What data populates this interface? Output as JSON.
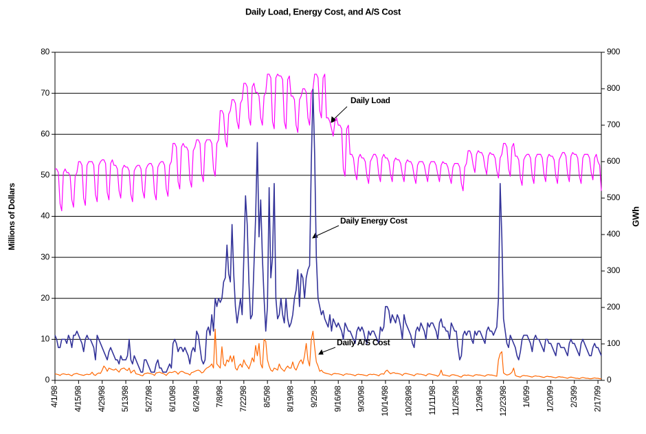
{
  "chart_data": {
    "type": "line",
    "title": "Daily Load, Energy Cost, and A/S Cost",
    "ylabel": "Millions of Dollars",
    "y2label": "GWh",
    "ylim": [
      0,
      80
    ],
    "yticks": [
      0,
      10,
      20,
      30,
      40,
      50,
      60,
      70,
      80
    ],
    "y2lim": [
      0,
      900
    ],
    "y2ticks": [
      0,
      100,
      200,
      300,
      400,
      500,
      600,
      700,
      800,
      900
    ],
    "grid": true,
    "annotations": [
      "Daily Load",
      "Daily Energy Cost",
      "Daily A/S Cost"
    ],
    "categories": [
      "4/1/98",
      null,
      null,
      null,
      null,
      null,
      null,
      null,
      null,
      null,
      null,
      null,
      null,
      null,
      "4/15/98",
      null,
      null,
      null,
      null,
      null,
      null,
      null,
      null,
      null,
      null,
      null,
      null,
      null,
      "4/29/98",
      null,
      null,
      null,
      null,
      null,
      null,
      null,
      null,
      null,
      null,
      null,
      null,
      null,
      "5/13/98",
      null,
      null,
      null,
      null,
      null,
      null,
      null,
      null,
      null,
      null,
      null,
      null,
      null,
      "5/27/98",
      null,
      null,
      null,
      null,
      null,
      null,
      null,
      null,
      null,
      null,
      null,
      null,
      null,
      "6/10/98",
      null,
      null,
      null,
      null,
      null,
      null,
      null,
      null,
      null,
      null,
      null,
      null,
      null,
      "6/24/98",
      null,
      null,
      null,
      null,
      null,
      null,
      null,
      null,
      null,
      null,
      null,
      null,
      null,
      "7/8/98",
      null,
      null,
      null,
      null,
      null,
      null,
      null,
      null,
      null,
      null,
      null,
      null,
      null,
      "7/22/98",
      null,
      null,
      null,
      null,
      null,
      null,
      null,
      null,
      null,
      null,
      null,
      null,
      null,
      "8/5/98",
      null,
      null,
      null,
      null,
      null,
      null,
      null,
      null,
      null,
      null,
      null,
      null,
      null,
      "8/19/98",
      null,
      null,
      null,
      null,
      null,
      null,
      null,
      null,
      null,
      null,
      null,
      null,
      null,
      "9/2/98",
      null,
      null,
      null,
      null,
      null,
      null,
      null,
      null,
      null,
      null,
      null,
      null,
      null,
      "9/16/98",
      null,
      null,
      null,
      null,
      null,
      null,
      null,
      null,
      null,
      null,
      null,
      null,
      null,
      "9/30/98",
      null,
      null,
      null,
      null,
      null,
      null,
      null,
      null,
      null,
      null,
      null,
      null,
      null,
      "10/14/98",
      null,
      null,
      null,
      null,
      null,
      null,
      null,
      null,
      null,
      null,
      null,
      null,
      null,
      "10/28/98",
      null,
      null,
      null,
      null,
      null,
      null,
      null,
      null,
      null,
      null,
      null,
      null,
      null,
      "11/11/98",
      null,
      null,
      null,
      null,
      null,
      null,
      null,
      null,
      null,
      null,
      null,
      null,
      null,
      "11/25/98",
      null,
      null,
      null,
      null,
      null,
      null,
      null,
      null,
      null,
      null,
      null,
      null,
      null,
      "12/9/98",
      null,
      null,
      null,
      null,
      null,
      null,
      null,
      null,
      null,
      null,
      null,
      null,
      null,
      "12/23/98",
      null,
      null,
      null,
      null,
      null,
      null,
      null,
      null,
      null,
      null,
      null,
      null,
      null,
      "1/6/99",
      null,
      null,
      null,
      null,
      null,
      null,
      null,
      null,
      null,
      null,
      null,
      null,
      null,
      "1/20/99",
      null,
      null,
      null,
      null,
      null,
      null,
      null,
      null,
      null,
      null,
      null,
      null,
      null,
      "2/3/99",
      null,
      null,
      null,
      null,
      null,
      null,
      null,
      null,
      null,
      null,
      null,
      null,
      null,
      "2/17/99",
      null,
      null
    ],
    "series": [
      {
        "name": "Daily Load",
        "color": "#ff00ff",
        "axis": "y2",
        "values": [
          580,
          580,
          570,
          485,
          465,
          570,
          580,
          570,
          570,
          560,
          495,
          475,
          560,
          570,
          600,
          600,
          590,
          500,
          480,
          590,
          600,
          600,
          600,
          590,
          510,
          490,
          590,
          600,
          605,
          605,
          595,
          515,
          495,
          595,
          605,
          590,
          590,
          580,
          520,
          500,
          580,
          590,
          585,
          585,
          575,
          510,
          490,
          575,
          585,
          590,
          590,
          580,
          520,
          500,
          580,
          590,
          595,
          595,
          585,
          515,
          495,
          585,
          595,
          600,
          600,
          590,
          525,
          505,
          590,
          600,
          650,
          650,
          640,
          545,
          525,
          640,
          650,
          640,
          640,
          630,
          550,
          530,
          630,
          640,
          660,
          660,
          650,
          565,
          545,
          650,
          660,
          660,
          660,
          650,
          580,
          560,
          650,
          660,
          740,
          740,
          730,
          660,
          640,
          730,
          740,
          770,
          770,
          760,
          710,
          690,
          760,
          770,
          815,
          815,
          805,
          720,
          700,
          805,
          815,
          790,
          790,
          780,
          720,
          700,
          780,
          790,
          840,
          840,
          830,
          710,
          690,
          830,
          840,
          835,
          835,
          825,
          710,
          690,
          825,
          835,
          780,
          780,
          770,
          700,
          680,
          770,
          780,
          800,
          800,
          790,
          720,
          700,
          790,
          800,
          840,
          840,
          830,
          740,
          720,
          830,
          840,
          720,
          720,
          710,
          690,
          670,
          710,
          720,
          700,
          700,
          690,
          580,
          560,
          690,
          700,
          620,
          620,
          610,
          570,
          550,
          610,
          620,
          610,
          610,
          600,
          560,
          540,
          600,
          610,
          620,
          620,
          610,
          565,
          545,
          610,
          620,
          610,
          610,
          600,
          565,
          545,
          600,
          610,
          605,
          605,
          595,
          565,
          545,
          595,
          605,
          600,
          600,
          590,
          560,
          540,
          590,
          600,
          600,
          600,
          590,
          565,
          545,
          590,
          600,
          600,
          600,
          590,
          565,
          545,
          590,
          600,
          595,
          595,
          585,
          560,
          540,
          585,
          595,
          595,
          595,
          585,
          540,
          520,
          585,
          595,
          630,
          630,
          620,
          590,
          570,
          620,
          630,
          625,
          625,
          615,
          585,
          565,
          615,
          625,
          620,
          620,
          610,
          575,
          555,
          610,
          620,
          650,
          650,
          640,
          580,
          560,
          640,
          650,
          615,
          615,
          605,
          555,
          535,
          605,
          615,
          620,
          620,
          610,
          560,
          540,
          610,
          620,
          620,
          620,
          610,
          565,
          545,
          610,
          620,
          615,
          615,
          605,
          560,
          540,
          605,
          615,
          625,
          625,
          615,
          565,
          545,
          615,
          625,
          620,
          620,
          610,
          560,
          540,
          610,
          620,
          620,
          620,
          610,
          570,
          550,
          610,
          620,
          600,
          590,
          520
        ]
      },
      {
        "name": "Daily Energy Cost",
        "color": "#333399",
        "values": [
          11,
          10,
          8,
          8,
          10,
          10,
          10,
          9,
          11,
          10,
          8,
          11,
          11,
          12,
          11,
          10,
          9,
          7,
          10,
          11,
          10,
          10,
          9,
          8,
          5,
          11,
          10,
          9,
          8,
          7,
          6,
          5,
          7,
          8,
          7,
          6,
          5,
          5,
          4,
          6,
          5,
          5,
          5,
          6,
          10,
          5,
          4,
          6,
          5,
          4,
          3,
          2,
          2,
          5,
          5,
          4,
          3,
          2,
          2,
          2,
          4,
          5,
          3,
          3,
          2,
          2,
          2,
          3,
          4,
          3,
          9,
          10,
          9,
          7,
          8,
          8,
          7,
          8,
          7,
          6,
          4,
          7,
          8,
          7,
          12,
          11,
          8,
          5,
          4,
          5,
          12,
          13,
          11,
          16,
          12,
          20,
          18,
          20,
          19,
          20,
          24,
          25,
          33,
          26,
          24,
          38,
          26,
          18,
          14,
          17,
          20,
          16,
          30,
          45,
          38,
          24,
          15,
          16,
          28,
          40,
          58,
          35,
          44,
          30,
          20,
          12,
          18,
          47,
          25,
          30,
          48,
          20,
          15,
          16,
          20,
          16,
          14,
          20,
          15,
          13,
          14,
          16,
          20,
          22,
          27,
          18,
          26,
          25,
          20,
          25,
          27,
          28,
          53,
          71,
          55,
          30,
          20,
          18,
          16,
          17,
          15,
          14,
          13,
          16,
          12,
          15,
          14,
          13,
          14,
          13,
          12,
          10,
          14,
          13,
          12,
          12,
          11,
          10,
          9,
          12,
          13,
          12,
          13,
          12,
          10,
          9,
          12,
          11,
          12,
          12,
          11,
          10,
          9,
          13,
          12,
          13,
          18,
          18,
          17,
          14,
          16,
          15,
          14,
          16,
          15,
          13,
          10,
          16,
          14,
          13,
          12,
          11,
          9,
          8,
          12,
          13,
          12,
          14,
          13,
          12,
          10,
          14,
          13,
          14,
          14,
          13,
          12,
          10,
          14,
          15,
          13,
          13,
          12,
          12,
          10,
          14,
          13,
          12,
          12,
          8,
          5,
          6,
          11,
          12,
          11,
          12,
          12,
          10,
          9,
          12,
          11,
          12,
          12,
          11,
          10,
          9,
          12,
          13,
          12,
          12,
          11,
          12,
          13,
          20,
          48,
          35,
          15,
          12,
          9,
          8,
          11,
          10,
          9,
          8,
          6,
          5,
          7,
          10,
          11,
          11,
          11,
          10,
          9,
          7,
          10,
          11,
          10,
          10,
          9,
          8,
          7,
          10,
          10,
          9,
          9,
          8,
          7,
          6,
          9,
          9,
          8,
          8,
          8,
          7,
          6,
          9,
          10,
          9,
          9,
          8,
          7,
          6,
          9,
          10,
          9,
          8,
          7,
          6,
          6,
          8,
          9,
          8,
          8,
          7,
          6
        ]
      },
      {
        "name": "Daily A/S Cost",
        "color": "#ff6600",
        "values": [
          1.6,
          1.5,
          1.4,
          1.2,
          1.5,
          1.6,
          1.5,
          1.4,
          1.5,
          1.3,
          1.1,
          1.5,
          1.6,
          1.7,
          1.5,
          1.4,
          1.3,
          1.2,
          1.4,
          1.5,
          1.4,
          1.5,
          2.0,
          1.4,
          1.2,
          1.6,
          1.8,
          1.7,
          2.5,
          3.5,
          3.0,
          2.2,
          3.0,
          2.8,
          2.6,
          2.5,
          2.8,
          2.4,
          2.0,
          2.7,
          2.9,
          3.0,
          2.6,
          2.4,
          3.0,
          1.8,
          2.2,
          2.5,
          1.6,
          1.5,
          1.4,
          1.2,
          1.1,
          1.6,
          1.7,
          1.8,
          1.7,
          1.6,
          1.5,
          1.2,
          1.8,
          1.9,
          2.0,
          1.8,
          1.7,
          1.5,
          1.2,
          1.7,
          2.0,
          1.9,
          2.0,
          2.2,
          2.0,
          1.5,
          2.0,
          2.2,
          2.1,
          1.8,
          1.7,
          1.6,
          1.3,
          1.9,
          2.0,
          2.2,
          2.4,
          2.5,
          2.3,
          1.8,
          2.0,
          2.6,
          3.0,
          3.2,
          3.5,
          4.0,
          3.0,
          12.5,
          4.0,
          3.5,
          3.0,
          8.2,
          4.0,
          3.5,
          5.0,
          4.5,
          6.0,
          4.5,
          6.0,
          3.0,
          2.5,
          3.5,
          4.0,
          3.2,
          5.0,
          4.0,
          3.5,
          2.8,
          4.0,
          5.5,
          4.5,
          8.5,
          6.0,
          9.0,
          4.0,
          3.0,
          10.0,
          9.5,
          5.0,
          3.5,
          2.5,
          2.2,
          3.0,
          2.8,
          2.5,
          4.0,
          3.0,
          2.6,
          2.2,
          3.0,
          3.5,
          3.0,
          3.0,
          4.5,
          3.0,
          2.5,
          3.5,
          4.5,
          5.0,
          4.0,
          6.0,
          9.0,
          5.0,
          3.5,
          10.0,
          12.0,
          8.0,
          4.5,
          3.5,
          2.2,
          2.5,
          2.0,
          1.8,
          1.7,
          1.6,
          1.5,
          1.3,
          1.6,
          1.7,
          1.6,
          1.6,
          1.5,
          1.4,
          1.2,
          1.5,
          1.6,
          1.5,
          1.5,
          1.4,
          1.3,
          1.1,
          1.4,
          1.5,
          1.4,
          1.4,
          1.3,
          1.2,
          1.1,
          1.4,
          1.5,
          1.4,
          1.5,
          1.4,
          1.3,
          1.1,
          1.5,
          1.6,
          1.5,
          2.2,
          2.5,
          2.0,
          1.6,
          1.8,
          1.9,
          1.7,
          1.7,
          1.6,
          1.5,
          1.2,
          1.6,
          1.7,
          1.6,
          1.5,
          1.4,
          1.3,
          1.1,
          1.5,
          1.6,
          1.5,
          1.5,
          1.4,
          1.3,
          1.1,
          1.5,
          1.6,
          1.5,
          1.4,
          1.3,
          1.2,
          1.0,
          1.4,
          2.5,
          1.3,
          1.3,
          1.2,
          1.1,
          1.0,
          1.3,
          1.4,
          1.3,
          1.2,
          1.1,
          0.9,
          0.8,
          1.2,
          1.3,
          1.2,
          1.3,
          1.2,
          1.1,
          1.0,
          1.3,
          1.4,
          1.3,
          1.3,
          1.2,
          1.1,
          1.0,
          1.3,
          1.4,
          1.3,
          1.3,
          1.2,
          1.1,
          1.0,
          5.0,
          6.5,
          7.0,
          1.8,
          1.5,
          1.3,
          1.4,
          1.6,
          2.0,
          3.0,
          1.2,
          1.0,
          0.9,
          0.8,
          1.1,
          1.2,
          1.1,
          1.1,
          1.0,
          0.9,
          0.8,
          1.0,
          1.1,
          1.0,
          1.0,
          0.9,
          0.8,
          0.7,
          0.9,
          1.0,
          0.9,
          0.9,
          0.8,
          0.7,
          0.6,
          0.8,
          0.9,
          0.8,
          0.8,
          0.7,
          0.6,
          0.5,
          0.7,
          0.8,
          0.7,
          0.6,
          0.5,
          0.5,
          0.4,
          0.6,
          0.7,
          0.6,
          0.5,
          0.5,
          0.4,
          0.4,
          0.5,
          0.6,
          0.5,
          0.5,
          0.4,
          0.4
        ]
      }
    ]
  }
}
